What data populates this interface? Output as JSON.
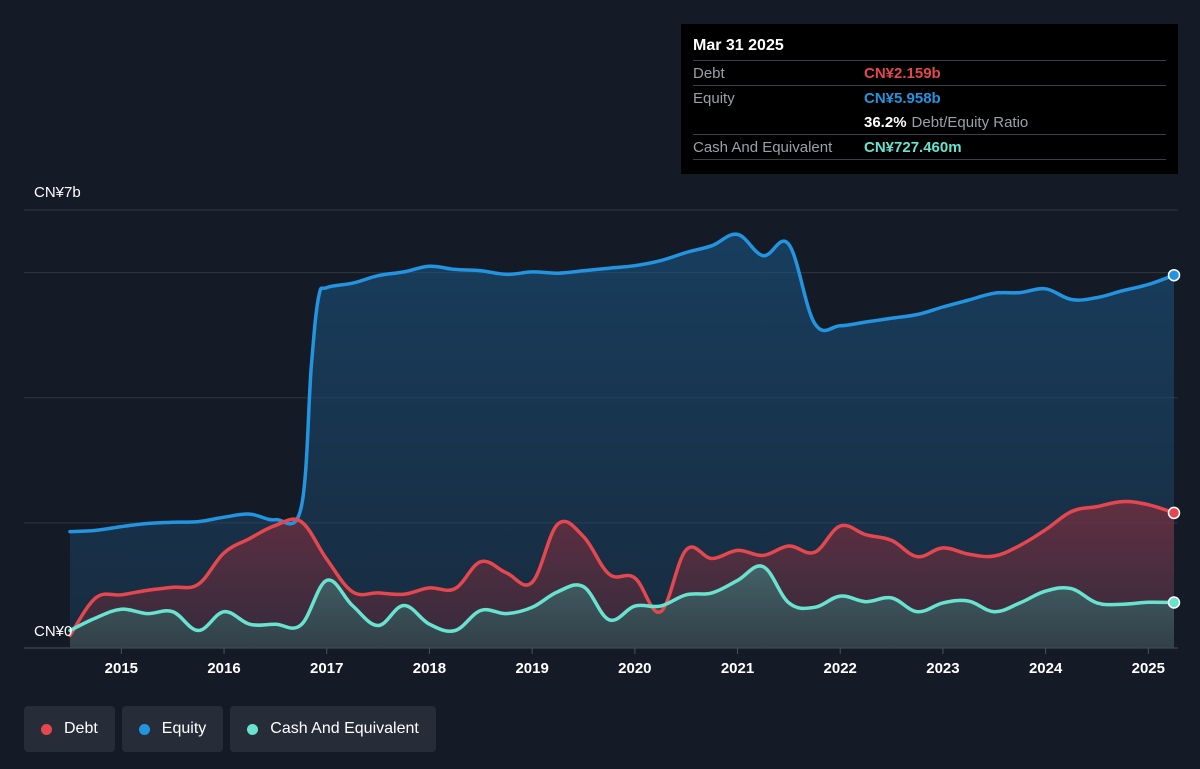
{
  "colors": {
    "debt": "#e5474e",
    "equity": "#2394df",
    "cash": "#68e3cf",
    "background": "#151b26",
    "grid": "#39404c"
  },
  "tooltip": {
    "date": "Mar 31 2025",
    "debt_label": "Debt",
    "debt_value": "CN¥2.159b",
    "equity_label": "Equity",
    "equity_value": "CN¥5.958b",
    "ratio_value": "36.2%",
    "ratio_label": "Debt/Equity Ratio",
    "cash_label": "Cash And Equivalent",
    "cash_value": "CN¥727.460m"
  },
  "legend": [
    {
      "label": "Debt",
      "color": "#e5474e"
    },
    {
      "label": "Equity",
      "color": "#2394df"
    },
    {
      "label": "Cash And Equivalent",
      "color": "#68e3cf"
    }
  ],
  "chart_data": {
    "type": "area",
    "y_top_label": "CN¥7b",
    "y_bottom_label": "CN¥0",
    "ylim": [
      0,
      7
    ],
    "y_unit": "CN¥ billions",
    "xlim": [
      2014.5,
      2025.25
    ],
    "x_ticks": [
      "2015",
      "2016",
      "2017",
      "2018",
      "2019",
      "2020",
      "2021",
      "2022",
      "2023",
      "2024",
      "2025"
    ],
    "grid": true,
    "legend_position": "bottom-left",
    "series": [
      {
        "name": "Equity",
        "x": [
          2014.5,
          2014.75,
          2015.0,
          2015.25,
          2015.5,
          2015.75,
          2016.0,
          2016.25,
          2016.5,
          2016.75,
          2016.85,
          2016.92,
          2017.0,
          2017.25,
          2017.5,
          2017.75,
          2018.0,
          2018.25,
          2018.5,
          2018.75,
          2019.0,
          2019.25,
          2019.5,
          2019.75,
          2020.0,
          2020.25,
          2020.5,
          2020.75,
          2021.0,
          2021.25,
          2021.5,
          2021.75,
          2022.0,
          2022.25,
          2022.5,
          2022.75,
          2023.0,
          2023.25,
          2023.5,
          2023.75,
          2024.0,
          2024.25,
          2024.5,
          2024.75,
          2025.0,
          2025.25
        ],
        "y": [
          1.86,
          1.88,
          1.94,
          1.99,
          2.01,
          2.02,
          2.09,
          2.14,
          2.05,
          2.24,
          4.5,
          5.6,
          5.76,
          5.83,
          5.95,
          6.01,
          6.1,
          6.05,
          6.03,
          5.97,
          6.01,
          5.99,
          6.03,
          6.07,
          6.11,
          6.19,
          6.32,
          6.43,
          6.61,
          6.27,
          6.45,
          5.19,
          5.15,
          5.21,
          5.27,
          5.33,
          5.45,
          5.56,
          5.67,
          5.68,
          5.74,
          5.57,
          5.6,
          5.71,
          5.81,
          5.958
        ]
      },
      {
        "name": "Debt",
        "x": [
          2014.5,
          2014.75,
          2015.0,
          2015.25,
          2015.5,
          2015.75,
          2016.0,
          2016.25,
          2016.5,
          2016.75,
          2017.0,
          2017.25,
          2017.5,
          2017.75,
          2018.0,
          2018.25,
          2018.5,
          2018.75,
          2019.0,
          2019.25,
          2019.5,
          2019.75,
          2020.0,
          2020.25,
          2020.5,
          2020.75,
          2021.0,
          2021.25,
          2021.5,
          2021.75,
          2022.0,
          2022.25,
          2022.5,
          2022.75,
          2023.0,
          2023.25,
          2023.5,
          2023.75,
          2024.0,
          2024.25,
          2024.5,
          2024.75,
          2025.0,
          2025.25
        ],
        "y": [
          0.2,
          0.8,
          0.85,
          0.92,
          0.97,
          1.02,
          1.52,
          1.75,
          1.96,
          2.02,
          1.42,
          0.9,
          0.88,
          0.86,
          0.96,
          0.95,
          1.38,
          1.2,
          1.05,
          1.98,
          1.78,
          1.18,
          1.12,
          0.58,
          1.57,
          1.43,
          1.56,
          1.48,
          1.63,
          1.53,
          1.95,
          1.81,
          1.72,
          1.46,
          1.6,
          1.5,
          1.47,
          1.64,
          1.89,
          2.18,
          2.26,
          2.34,
          2.29,
          2.159
        ]
      },
      {
        "name": "Cash And Equivalent",
        "x": [
          2014.5,
          2014.75,
          2015.0,
          2015.25,
          2015.5,
          2015.75,
          2016.0,
          2016.25,
          2016.5,
          2016.75,
          2017.0,
          2017.25,
          2017.5,
          2017.75,
          2018.0,
          2018.25,
          2018.5,
          2018.75,
          2019.0,
          2019.25,
          2019.5,
          2019.75,
          2020.0,
          2020.25,
          2020.5,
          2020.75,
          2021.0,
          2021.25,
          2021.5,
          2021.75,
          2022.0,
          2022.25,
          2022.5,
          2022.75,
          2023.0,
          2023.25,
          2023.5,
          2023.75,
          2024.0,
          2024.25,
          2024.5,
          2024.75,
          2025.0,
          2025.25
        ],
        "y": [
          0.28,
          0.48,
          0.62,
          0.55,
          0.58,
          0.28,
          0.58,
          0.38,
          0.38,
          0.37,
          1.08,
          0.68,
          0.36,
          0.68,
          0.38,
          0.28,
          0.6,
          0.55,
          0.65,
          0.9,
          0.98,
          0.45,
          0.67,
          0.67,
          0.85,
          0.88,
          1.08,
          1.3,
          0.72,
          0.65,
          0.83,
          0.74,
          0.8,
          0.58,
          0.72,
          0.75,
          0.58,
          0.72,
          0.91,
          0.95,
          0.72,
          0.7,
          0.73,
          0.727
        ]
      }
    ]
  }
}
